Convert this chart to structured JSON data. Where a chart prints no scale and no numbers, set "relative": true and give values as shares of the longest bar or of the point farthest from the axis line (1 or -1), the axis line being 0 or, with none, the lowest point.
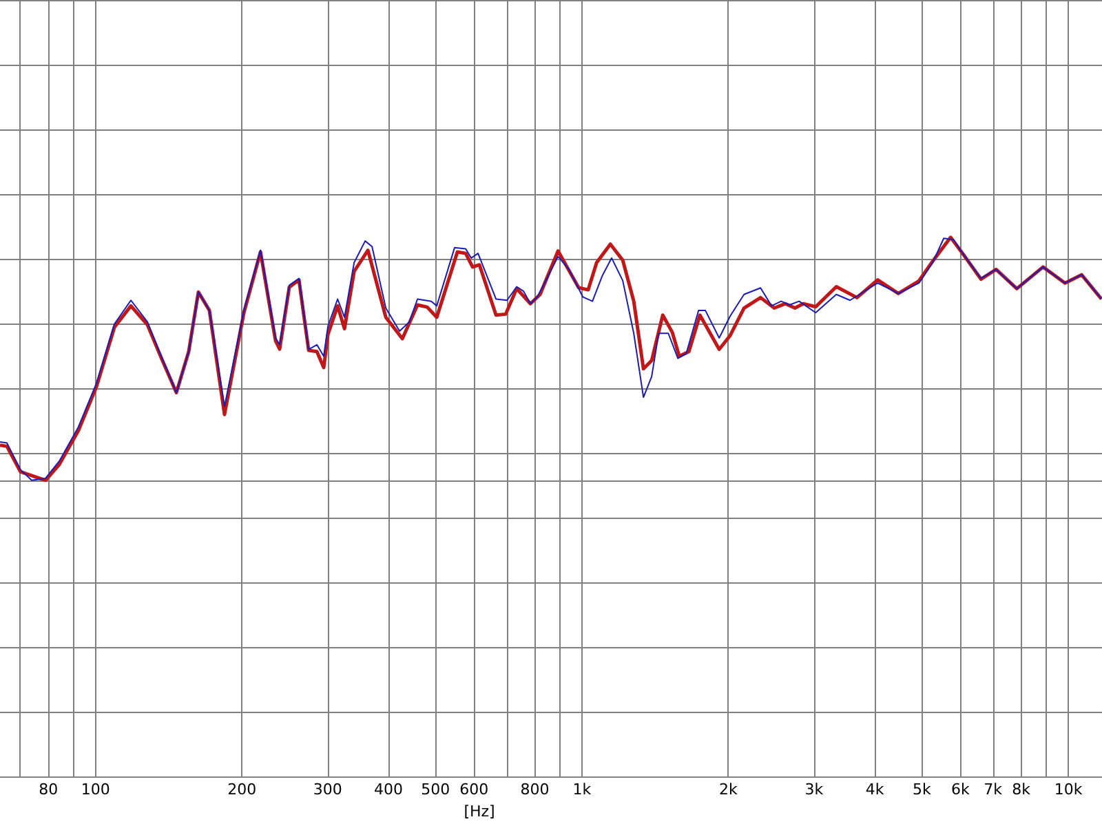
{
  "chart_data": {
    "type": "line",
    "xlabel": "[Hz]",
    "relative": true,
    "log": "x",
    "grid": true,
    "xlim": [
      63.6,
      11730
    ],
    "xticks": [
      {
        "value": 70,
        "label": null
      },
      80,
      {
        "value": 90,
        "label": null
      },
      100,
      200,
      300,
      400,
      500,
      600,
      {
        "value": 700,
        "label": null
      },
      800,
      {
        "value": 900,
        "label": null
      },
      {
        "value": 1000,
        "label": "1k"
      },
      {
        "value": 2000,
        "label": "2k"
      },
      {
        "value": 3000,
        "label": "3k"
      },
      {
        "value": 4000,
        "label": "4k"
      },
      {
        "value": 5000,
        "label": "5k"
      },
      {
        "value": 6000,
        "label": "6k"
      },
      {
        "value": 7000,
        "label": "7k"
      },
      {
        "value": 8000,
        "label": "8k"
      },
      {
        "value": 9000,
        "label": null
      },
      {
        "value": 10000,
        "label": "10k"
      }
    ],
    "series": [
      {
        "color": "#c01818",
        "x": [
          63.6,
          65.7,
          70.1,
          78.9,
          84.2,
          92.2,
          100.4,
          109.3,
          118.2,
          127.8,
          136.4,
          146.6,
          155.4,
          162.7,
          171.4,
          184.1,
          201.8,
          218.3,
          234.4,
          239,
          250.2,
          261.9,
          274.2,
          285.1,
          294.5,
          300.4,
          314.5,
          324.9,
          340.1,
          363,
          395.1,
          427.3,
          459.1,
          480.5,
          502.9,
          554.5,
          576.7,
          595.8,
          615.5,
          665.7,
          696.9,
          734.2,
          783.7,
          820.3,
          892.8,
          984.4,
          1030,
          1072,
          1144,
          1213,
          1278,
          1338,
          1391,
          1466,
          1534,
          1585,
          1659,
          1748,
          1915,
          2017,
          2154,
          2329,
          2486,
          2619,
          2742,
          2851,
          3024,
          3334,
          3677,
          4055,
          4472,
          4932,
          5262,
          5729,
          6114,
          6613,
          7105,
          7836,
          8872,
          9845,
          10650,
          11700
        ],
        "values": [
          0.145,
          0.14,
          0.035,
          0,
          0.065,
          0.205,
          0.385,
          0.63,
          0.718,
          0.64,
          0.505,
          0.361,
          0.53,
          0.775,
          0.699,
          0.271,
          0.69,
          0.94,
          0.575,
          0.54,
          0.795,
          0.825,
          0.535,
          0.53,
          0.464,
          0.6,
          0.718,
          0.624,
          0.86,
          0.947,
          0.671,
          0.583,
          0.722,
          0.713,
          0.671,
          0.94,
          0.934,
          0.878,
          0.887,
          0.68,
          0.684,
          0.789,
          0.727,
          0.765,
          0.944,
          0.793,
          0.784,
          0.896,
          0.972,
          0.906,
          0.737,
          0.459,
          0.493,
          0.68,
          0.609,
          0.511,
          0.53,
          0.68,
          0.539,
          0.596,
          0.709,
          0.752,
          0.709,
          0.727,
          0.709,
          0.727,
          0.714,
          0.797,
          0.752,
          0.825,
          0.769,
          0.821,
          0.902,
          1,
          0.924,
          0.828,
          0.868,
          0.789,
          0.878,
          0.812,
          0.846,
          0.746
        ]
      },
      {
        "color": "#1c1cb4",
        "x": [
          63.6,
          65.7,
          70.1,
          73.9,
          78.9,
          84.2,
          92.2,
          100.4,
          109.3,
          118.2,
          127.8,
          136.4,
          146.6,
          155.4,
          162.7,
          171.4,
          184.1,
          201.8,
          218.3,
          234.4,
          239,
          250.2,
          261.9,
          274.2,
          285.1,
          294.5,
          300.4,
          314.5,
          324.9,
          340.1,
          358.3,
          370.2,
          395.1,
          421.7,
          441.5,
          459.1,
          490,
          502.9,
          547.3,
          576.7,
          591.9,
          611.5,
          665.7,
          701.4,
          734.2,
          758.6,
          783.7,
          809.6,
          847.3,
          892.8,
          940.5,
          1004,
          1051,
          1100,
          1151,
          1213,
          1278,
          1338,
          1391,
          1438,
          1505,
          1575,
          1638,
          1737,
          1794,
          1915,
          2017,
          2154,
          2329,
          2454,
          2568,
          2671,
          2796,
          3024,
          3334,
          3558,
          4055,
          4472,
          4932,
          5262,
          5545,
          5804,
          6114,
          6613,
          7105,
          7836,
          8872,
          9845,
          10650,
          11700
        ],
        "values": [
          0.158,
          0.154,
          0.043,
          0,
          0.008,
          0.079,
          0.22,
          0.399,
          0.643,
          0.741,
          0.652,
          0.511,
          0.361,
          0.53,
          0.775,
          0.699,
          0.304,
          0.699,
          0.947,
          0.586,
          0.558,
          0.803,
          0.831,
          0.539,
          0.558,
          0.511,
          0.634,
          0.746,
          0.671,
          0.896,
          0.985,
          0.962,
          0.709,
          0.614,
          0.652,
          0.746,
          0.737,
          0.718,
          0.958,
          0.953,
          0.915,
          0.934,
          0.746,
          0.741,
          0.797,
          0.778,
          0.727,
          0.755,
          0.831,
          0.921,
          0.868,
          0.755,
          0.737,
          0.84,
          0.915,
          0.822,
          0.605,
          0.342,
          0.427,
          0.605,
          0.605,
          0.502,
          0.521,
          0.699,
          0.699,
          0.586,
          0.676,
          0.765,
          0.792,
          0.718,
          0.737,
          0.722,
          0.737,
          0.69,
          0.765,
          0.741,
          0.812,
          0.769,
          0.812,
          0.896,
          0.996,
          0.991,
          0.924,
          0.831,
          0.868,
          0.789,
          0.878,
          0.812,
          0.846,
          0.746
        ]
      }
    ]
  }
}
